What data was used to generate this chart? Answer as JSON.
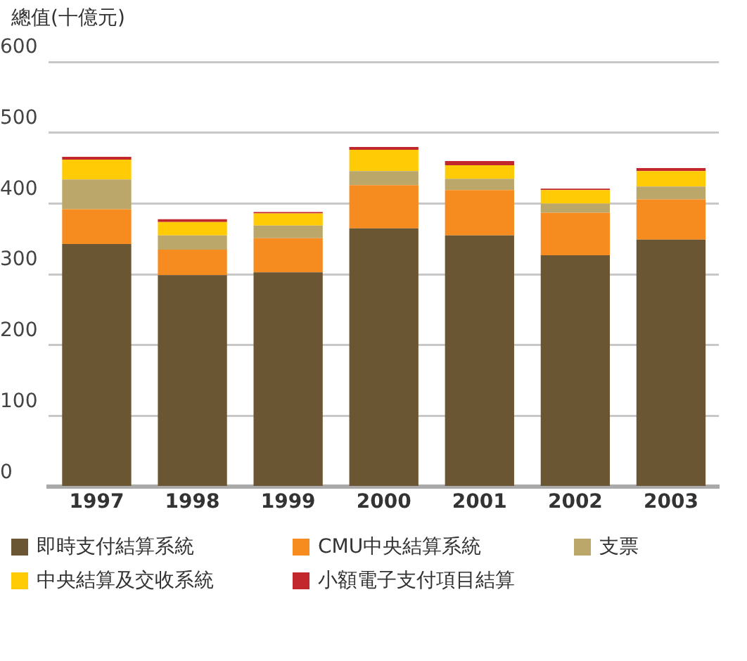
{
  "chart_data": {
    "type": "bar",
    "ylabel": "總值(十億元)",
    "stacked": true,
    "grid": "y",
    "legend": "bottom",
    "categories": [
      "1997",
      "1998",
      "1999",
      "2000",
      "2001",
      "2002",
      "2003"
    ],
    "ylim": [
      0,
      600
    ],
    "yticks": [
      0,
      100,
      200,
      300,
      400,
      500,
      600
    ],
    "series": [
      {
        "name": "即時支付結算系統",
        "color": "#6b5633",
        "values": [
          343,
          299,
          303,
          365,
          355,
          327,
          349
        ]
      },
      {
        "name": "CMU中央結算系統",
        "color": "#f68b1f",
        "values": [
          49,
          36,
          48,
          61,
          64,
          60,
          57
        ]
      },
      {
        "name": "支票",
        "color": "#bca76b",
        "values": [
          42,
          20,
          18,
          20,
          16,
          13,
          18
        ]
      },
      {
        "name": "中央結算及交收系統",
        "color": "#ffcb05",
        "values": [
          28,
          19,
          17,
          30,
          19,
          19,
          22
        ]
      },
      {
        "name": "小額電子支付項目結算",
        "color": "#c1272d",
        "values": [
          4,
          4,
          2,
          4,
          6,
          2,
          4
        ]
      }
    ]
  }
}
